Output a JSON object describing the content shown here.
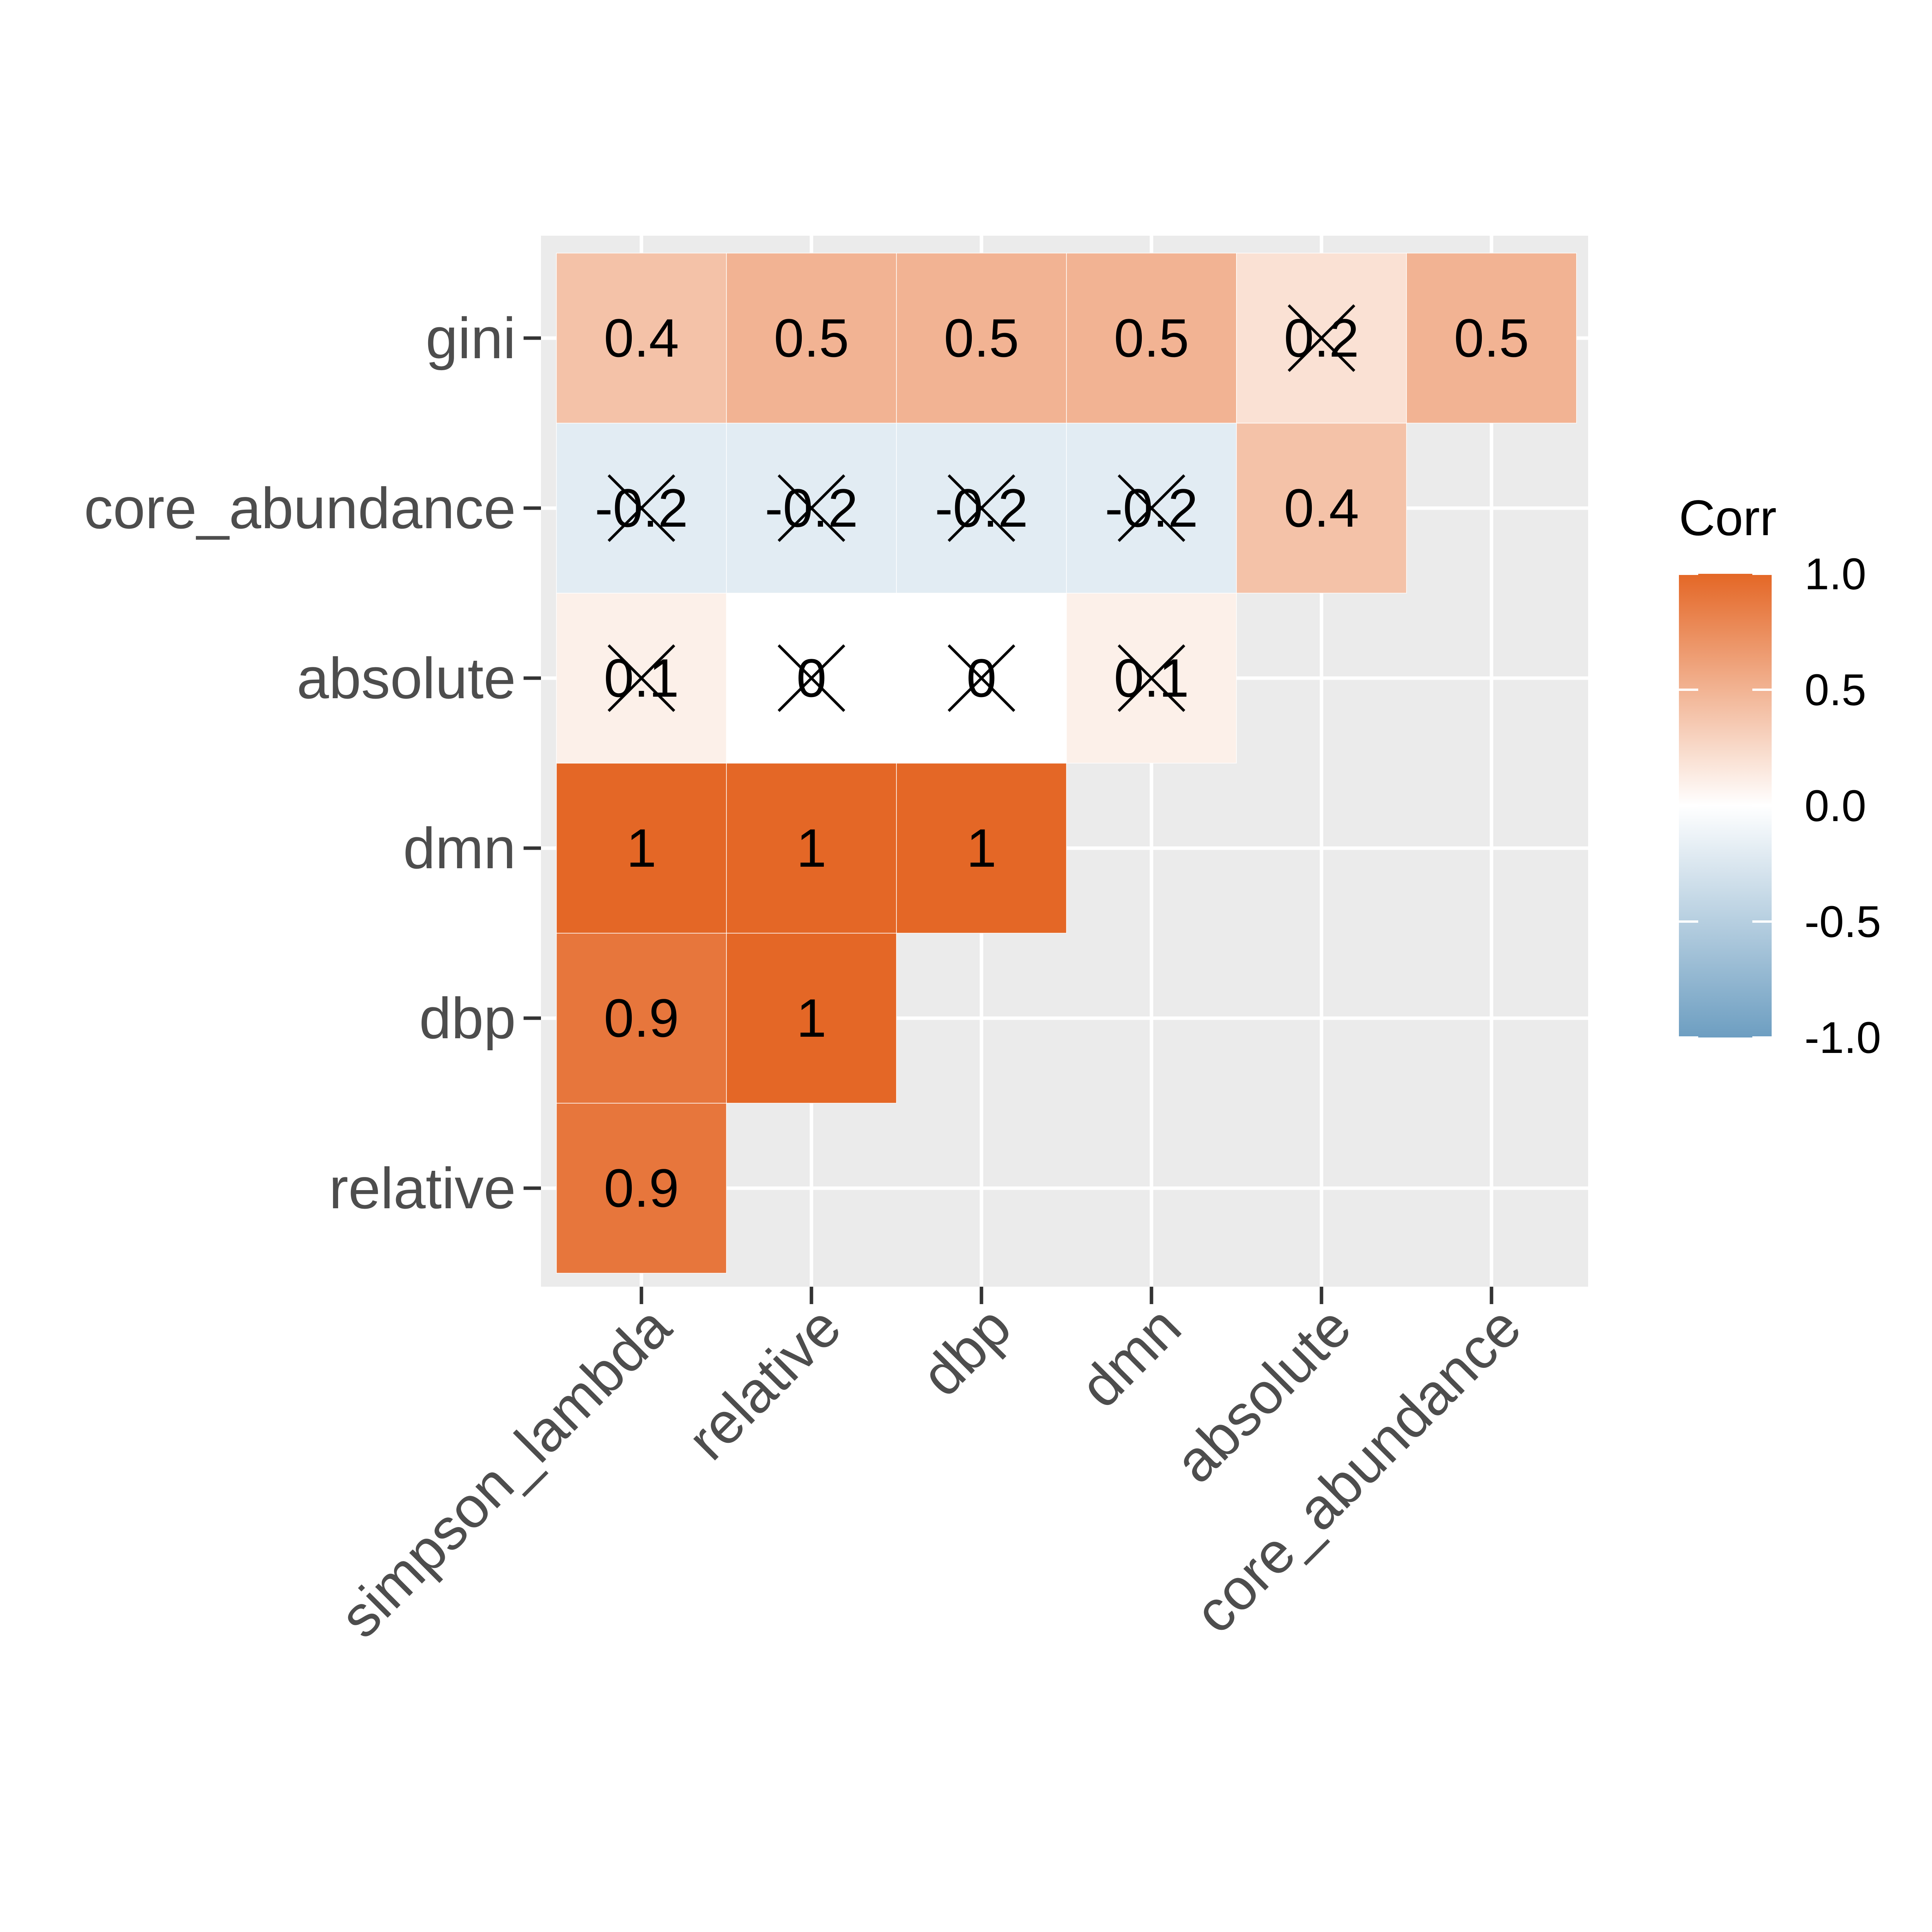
{
  "chart_data": {
    "type": "heatmap",
    "x_categories": [
      "simpson_lambda",
      "relative",
      "dbp",
      "dmn",
      "absolute",
      "core_abundance"
    ],
    "y_categories": [
      "relative",
      "dbp",
      "dmn",
      "absolute",
      "core_abundance",
      "gini"
    ],
    "cells": [
      {
        "x": "simpson_lambda",
        "y": "relative",
        "value": 0.9,
        "label": "0.9",
        "crossed": false
      },
      {
        "x": "simpson_lambda",
        "y": "dbp",
        "value": 0.9,
        "label": "0.9",
        "crossed": false
      },
      {
        "x": "relative",
        "y": "dbp",
        "value": 1.0,
        "label": "1",
        "crossed": false
      },
      {
        "x": "simpson_lambda",
        "y": "dmn",
        "value": 1.0,
        "label": "1",
        "crossed": false
      },
      {
        "x": "relative",
        "y": "dmn",
        "value": 1.0,
        "label": "1",
        "crossed": false
      },
      {
        "x": "dbp",
        "y": "dmn",
        "value": 1.0,
        "label": "1",
        "crossed": false
      },
      {
        "x": "simpson_lambda",
        "y": "absolute",
        "value": 0.1,
        "label": "0.1",
        "crossed": true
      },
      {
        "x": "relative",
        "y": "absolute",
        "value": 0.0,
        "label": "0",
        "crossed": true
      },
      {
        "x": "dbp",
        "y": "absolute",
        "value": 0.0,
        "label": "0",
        "crossed": true
      },
      {
        "x": "dmn",
        "y": "absolute",
        "value": 0.1,
        "label": "0.1",
        "crossed": true
      },
      {
        "x": "simpson_lambda",
        "y": "core_abundance",
        "value": -0.2,
        "label": "-0.2",
        "crossed": true
      },
      {
        "x": "relative",
        "y": "core_abundance",
        "value": -0.2,
        "label": "-0.2",
        "crossed": true
      },
      {
        "x": "dbp",
        "y": "core_abundance",
        "value": -0.2,
        "label": "-0.2",
        "crossed": true
      },
      {
        "x": "dmn",
        "y": "core_abundance",
        "value": -0.2,
        "label": "-0.2",
        "crossed": true
      },
      {
        "x": "absolute",
        "y": "core_abundance",
        "value": 0.4,
        "label": "0.4",
        "crossed": false
      },
      {
        "x": "simpson_lambda",
        "y": "gini",
        "value": 0.4,
        "label": "0.4",
        "crossed": false
      },
      {
        "x": "relative",
        "y": "gini",
        "value": 0.5,
        "label": "0.5",
        "crossed": false
      },
      {
        "x": "dbp",
        "y": "gini",
        "value": 0.5,
        "label": "0.5",
        "crossed": false
      },
      {
        "x": "dmn",
        "y": "gini",
        "value": 0.5,
        "label": "0.5",
        "crossed": false
      },
      {
        "x": "absolute",
        "y": "gini",
        "value": 0.2,
        "label": "0.2",
        "crossed": true
      },
      {
        "x": "core_abundance",
        "y": "gini",
        "value": 0.5,
        "label": "0.5",
        "crossed": false
      }
    ],
    "legend": {
      "title": "Corr",
      "range": [
        -1.0,
        1.0
      ],
      "ticks": [
        1.0,
        0.5,
        0.0,
        -0.5,
        -1.0
      ],
      "tick_labels": [
        "1.0",
        "0.5",
        "0.0",
        "-0.5",
        "-1.0"
      ],
      "placement": "right"
    },
    "colors": {
      "low": "#6d9ec1",
      "mid": "#ffffff",
      "high": "#e46726",
      "panel_background": "#ebebeb",
      "gridline": "#ffffff",
      "axis_text": "#4d4d4d",
      "cell_text": "#000000"
    },
    "grid": true
  }
}
